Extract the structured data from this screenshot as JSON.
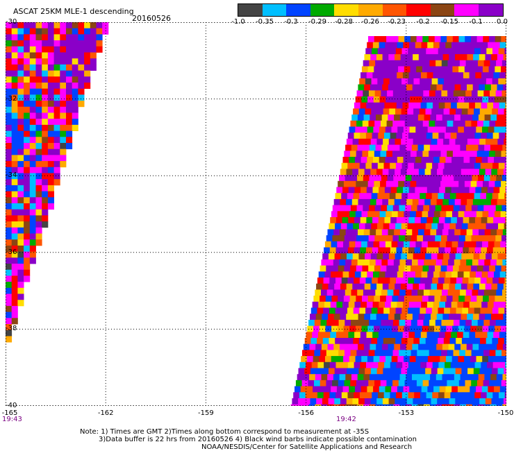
{
  "header": {
    "title": "ASCAT 25KM MLE-1 descending",
    "date": "20160526"
  },
  "colorbar": {
    "labels": [
      "-1.0",
      "-0.35",
      "-0.3",
      "-0.29",
      "-0.28",
      "-0.26",
      "-0.23",
      "-0.2",
      "-0.15",
      "-0.1",
      "0.0"
    ],
    "colors": [
      "#444444",
      "#00bfff",
      "#0044ff",
      "#00aa00",
      "#ffdd00",
      "#ffaa00",
      "#ff5500",
      "#ff0000",
      "#8b4513",
      "#ff00ff",
      "#8a00c8"
    ]
  },
  "map": {
    "lat_labels": [
      "-30",
      "-32",
      "-34",
      "-36",
      "-38",
      "-40"
    ],
    "lon_labels": [
      "-165",
      "-162",
      "-159",
      "-156",
      "-153",
      "-150"
    ],
    "time_labels": [
      "19:43",
      "19:42"
    ],
    "lat_range": [
      -40,
      -30
    ],
    "lon_range": [
      -165,
      -150
    ]
  },
  "notes": {
    "line1": "Note: 1) Times are GMT 2)Times along bottom correspond to measurement at -35S",
    "line2": "3)Data buffer is 22 hrs from 20160526 4) Black wind barbs indicate possible contamination",
    "line3": "NOAA/NESDIS/Center for Satellite Applications and Research"
  }
}
